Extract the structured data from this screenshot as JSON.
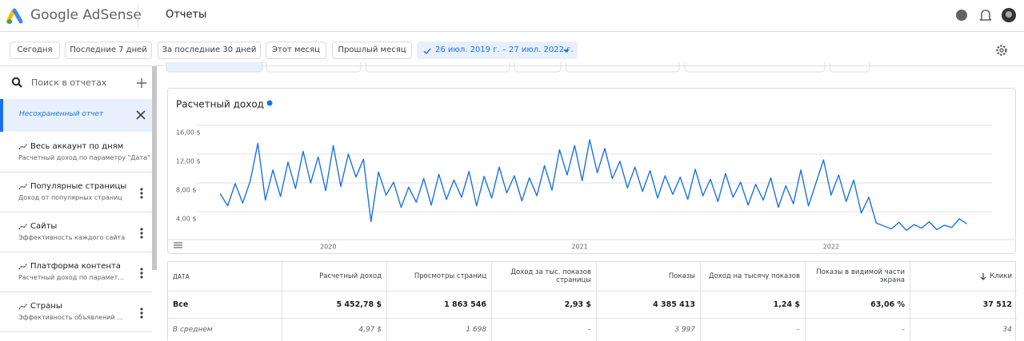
{
  "header": {
    "product": "Google AdSense",
    "section": "Отчеты"
  },
  "filters": [
    "Сегодня",
    "Последние 7 дней",
    "За последние 30 дней",
    "Этот месяц",
    "Прошлый месяц",
    "26 июл. 2019 г. – 27 июл. 2022 г."
  ],
  "sidebar": {
    "search": "Поиск в отчетах",
    "current": "Несохраненный отчет",
    "reports": [
      {
        "title": "Весь аккаунт по дням",
        "subtitle": "Расчетный доход по параметру \"Дата\""
      },
      {
        "title": "Популярные страницы",
        "subtitle": "Доход от популярных страниц"
      },
      {
        "title": "Сайты",
        "subtitle": "Эффективность каждого сайта"
      },
      {
        "title": "Платформа контента",
        "subtitle": "Расчетный доход по парамет..."
      },
      {
        "title": "Страны",
        "subtitle": "Эффективность объявлений ..."
      }
    ]
  },
  "chart_data": {
    "type": "line",
    "x": [
      2019.57,
      2019.6,
      2019.63,
      2019.66,
      2019.69,
      2019.72,
      2019.75,
      2019.78,
      2019.81,
      2019.84,
      2019.87,
      2019.9,
      2019.93,
      2019.96,
      2019.99,
      2020.02,
      2020.05,
      2020.08,
      2020.11,
      2020.14,
      2020.17,
      2020.2,
      2020.23,
      2020.26,
      2020.29,
      2020.32,
      2020.35,
      2020.38,
      2020.41,
      2020.44,
      2020.47,
      2020.5,
      2020.53,
      2020.56,
      2020.59,
      2020.62,
      2020.65,
      2020.68,
      2020.71,
      2020.74,
      2020.77,
      2020.8,
      2020.83,
      2020.86,
      2020.89,
      2020.92,
      2020.95,
      2020.98,
      2021.01,
      2021.04,
      2021.07,
      2021.1,
      2021.13,
      2021.16,
      2021.19,
      2021.22,
      2021.25,
      2021.28,
      2021.31,
      2021.34,
      2021.37,
      2021.4,
      2021.43,
      2021.46,
      2021.49,
      2021.52,
      2021.55,
      2021.58,
      2021.61,
      2021.64,
      2021.67,
      2021.7,
      2021.73,
      2021.76,
      2021.79,
      2021.82,
      2021.85,
      2021.88,
      2021.91,
      2021.94,
      2021.97,
      2022.0,
      2022.03,
      2022.06,
      2022.09,
      2022.12,
      2022.15,
      2022.18,
      2022.21,
      2022.24,
      2022.27,
      2022.3,
      2022.33,
      2022.36,
      2022.39,
      2022.42,
      2022.45,
      2022.48,
      2022.51,
      2022.54
    ],
    "series": [
      {
        "name": "Расчетный доход",
        "color": "#1a73e8",
        "values": [
          6.5,
          4.8,
          7.9,
          5.2,
          8.3,
          13.5,
          5.6,
          9.8,
          6.1,
          10.9,
          7.2,
          12.4,
          8.0,
          11.6,
          6.9,
          13.2,
          7.5,
          12.0,
          8.8,
          11.3,
          2.6,
          9.5,
          6.3,
          8.1,
          4.6,
          7.4,
          5.3,
          8.6,
          4.9,
          9.2,
          5.7,
          8.4,
          6.0,
          9.6,
          4.8,
          8.9,
          5.9,
          10.2,
          6.6,
          9.0,
          5.5,
          8.7,
          6.2,
          10.4,
          7.0,
          12.6,
          9.1,
          13.2,
          8.3,
          14.0,
          9.4,
          12.8,
          8.6,
          11.0,
          7.3,
          10.2,
          6.8,
          9.7,
          5.9,
          9.0,
          6.4,
          8.8,
          5.7,
          9.9,
          6.2,
          8.5,
          5.4,
          9.3,
          6.0,
          8.1,
          4.9,
          7.8,
          5.6,
          8.7,
          4.6,
          7.6,
          5.1,
          9.8,
          4.8,
          8.0,
          11.2,
          6.3,
          9.1,
          5.4,
          8.4,
          3.8,
          6.0,
          2.4,
          2.0,
          1.6,
          2.5,
          1.4,
          2.2,
          1.7,
          2.6,
          1.5,
          2.1,
          1.8,
          3.0,
          2.3
        ]
      }
    ],
    "xlim": [
      2019.56,
      2022.57
    ],
    "xticks": [
      2020,
      2021,
      2022
    ],
    "ylim": [
      0,
      16
    ],
    "yticks": [
      {
        "value": 4,
        "label": "4,00 $"
      },
      {
        "value": 8,
        "label": "8,00 $"
      },
      {
        "value": 12,
        "label": "12,00 $"
      },
      {
        "value": 16,
        "label": "16,00 $"
      }
    ],
    "grid": true
  },
  "table": {
    "headers": [
      "ДАТА",
      "Расчетный доход",
      "Просмотры страниц",
      "Доход за тыс. показов страницы",
      "Показы",
      "Доход на тысячу показов",
      "Показы в видимой части экрана",
      "Клики"
    ],
    "rows": [
      [
        "Все",
        "5 452,78 $",
        "1 863 546",
        "2,93 $",
        "4 385 413",
        "1,24 $",
        "63,06 %",
        "37 512"
      ],
      [
        "В среднем",
        "4,97 $",
        "1 698",
        "–",
        "3 997",
        "–",
        "–",
        "34"
      ]
    ]
  }
}
